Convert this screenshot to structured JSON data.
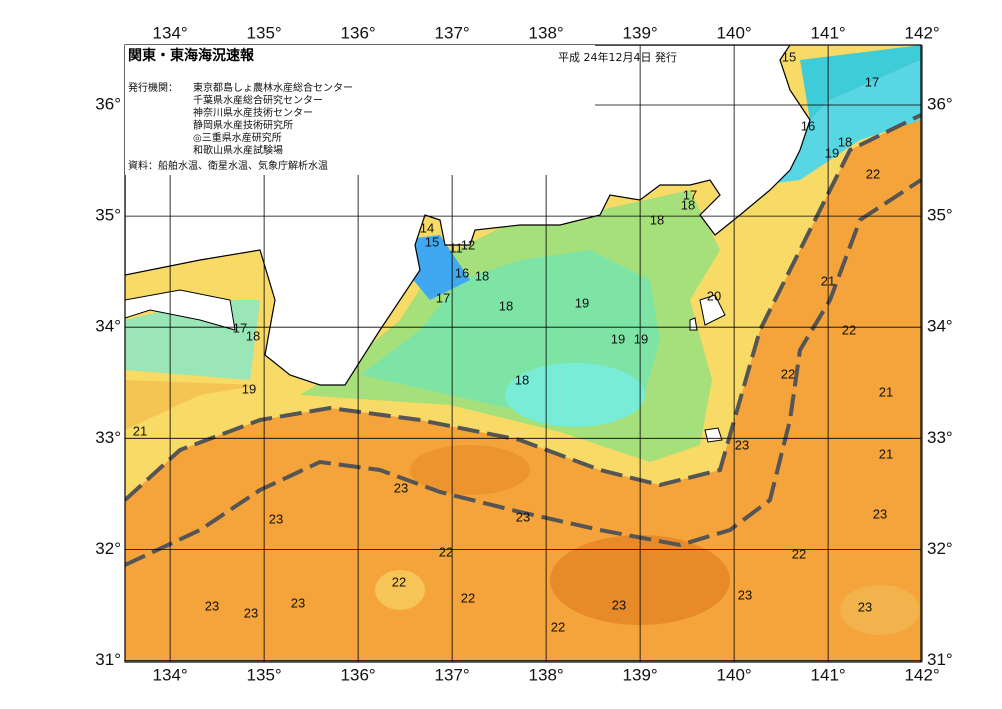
{
  "header": {
    "title": "関東・東海海況速報",
    "date": "平成 24年12月4日 発行",
    "agency_label": "発行機関：",
    "agencies": [
      "東京都島しょ農林水産総合センター",
      "千葉県水産総合研究センター",
      "神奈川県水産技術センター",
      "静岡県水産技術研究所",
      "◎三重県水産研究所",
      "和歌山県水産試験場"
    ],
    "source": "資料：船舶水温、衛星水温、気象庁解析水温"
  },
  "axes": {
    "lon_ticks": [
      {
        "value": 134,
        "label": "134°"
      },
      {
        "value": 135,
        "label": "135°"
      },
      {
        "value": 136,
        "label": "136°"
      },
      {
        "value": 137,
        "label": "137°"
      },
      {
        "value": 138,
        "label": "138°"
      },
      {
        "value": 139,
        "label": "139°"
      },
      {
        "value": 140,
        "label": "140°"
      },
      {
        "value": 141,
        "label": "141°"
      },
      {
        "value": 142,
        "label": "142°"
      }
    ],
    "lat_ticks": [
      {
        "value": 31,
        "label": "31°"
      },
      {
        "value": 32,
        "label": "32°"
      },
      {
        "value": 33,
        "label": "33°"
      },
      {
        "value": 34,
        "label": "34°"
      },
      {
        "value": 35,
        "label": "35°"
      },
      {
        "value": 36,
        "label": "36°"
      }
    ]
  },
  "contour_labels": [
    "15",
    "17",
    "16",
    "18",
    "19",
    "22",
    "17",
    "18",
    "18",
    "14",
    "15",
    "11",
    "12",
    "16",
    "18",
    "17",
    "18",
    "19",
    "20",
    "21",
    "17",
    "18",
    "22",
    "19",
    "19",
    "22",
    "18",
    "19",
    "21",
    "21",
    "23",
    "21",
    "23",
    "23",
    "23",
    "23",
    "22",
    "22",
    "22",
    "22",
    "23",
    "23",
    "23",
    "23",
    "23",
    "23",
    "22"
  ]
}
